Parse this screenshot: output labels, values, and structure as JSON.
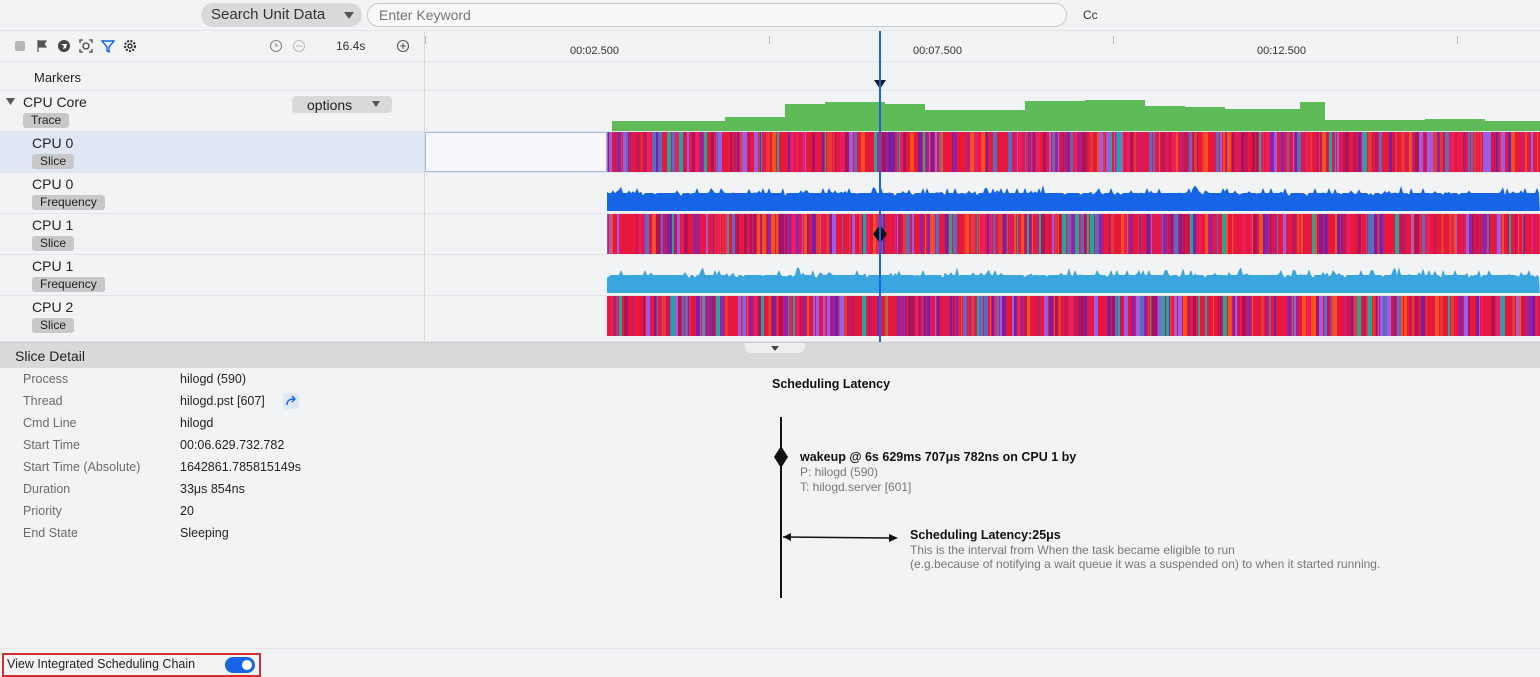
{
  "search": {
    "type_label": "Search Unit Data",
    "placeholder": "Enter Keyword",
    "case_toggle": "Cc"
  },
  "toolbar": {
    "duration": "16.4s"
  },
  "ruler": {
    "ticks": [
      "00:02.500",
      "00:07.500",
      "00:12.500"
    ]
  },
  "tracks": {
    "markers": "Markers",
    "cpu_core": {
      "title": "CPU Core",
      "tag": "Trace",
      "options": "options"
    },
    "rows": [
      {
        "title": "CPU 0",
        "tag": "Slice"
      },
      {
        "title": "CPU 0",
        "tag": "Frequency"
      },
      {
        "title": "CPU 1",
        "tag": "Slice"
      },
      {
        "title": "CPU 1",
        "tag": "Frequency"
      },
      {
        "title": "CPU 2",
        "tag": "Slice"
      }
    ]
  },
  "colors": {
    "accent": "#1565e6",
    "trace_green": "#5fbb57",
    "freq_blue_dark": "#1565e6",
    "freq_blue_light": "#3aa6df",
    "slice_red": "#e8173c"
  },
  "detail": {
    "title": "Slice Detail",
    "fields": [
      {
        "label": "Process",
        "value": "hilogd (590)"
      },
      {
        "label": "Thread",
        "value": "hilogd.pst [607]"
      },
      {
        "label": "Cmd Line",
        "value": "hilogd"
      },
      {
        "label": "Start Time",
        "value": "00:06.629.732.782"
      },
      {
        "label": "Start Time (Absolute)",
        "value": "1642861.785815149s"
      },
      {
        "label": "Duration",
        "value": "33μs 854ns"
      },
      {
        "label": "Priority",
        "value": "20"
      },
      {
        "label": "End State",
        "value": "Sleeping"
      }
    ]
  },
  "latency": {
    "title": "Scheduling Latency",
    "wakeup": "wakeup @ 6s 629ms 707μs 782ns on CPU 1 by",
    "process": "P: hilogd (590)",
    "thread": "T: hilogd.server [601]",
    "value": "Scheduling Latency:25μs",
    "desc1": "This is the interval from When the task became eligible to run",
    "desc2": "(e.g.because of notifying a wait queue it was a suspended on) to when it started running."
  },
  "footer": {
    "chain_label": "View Integrated Scheduling Chain",
    "chain_enabled": true
  }
}
